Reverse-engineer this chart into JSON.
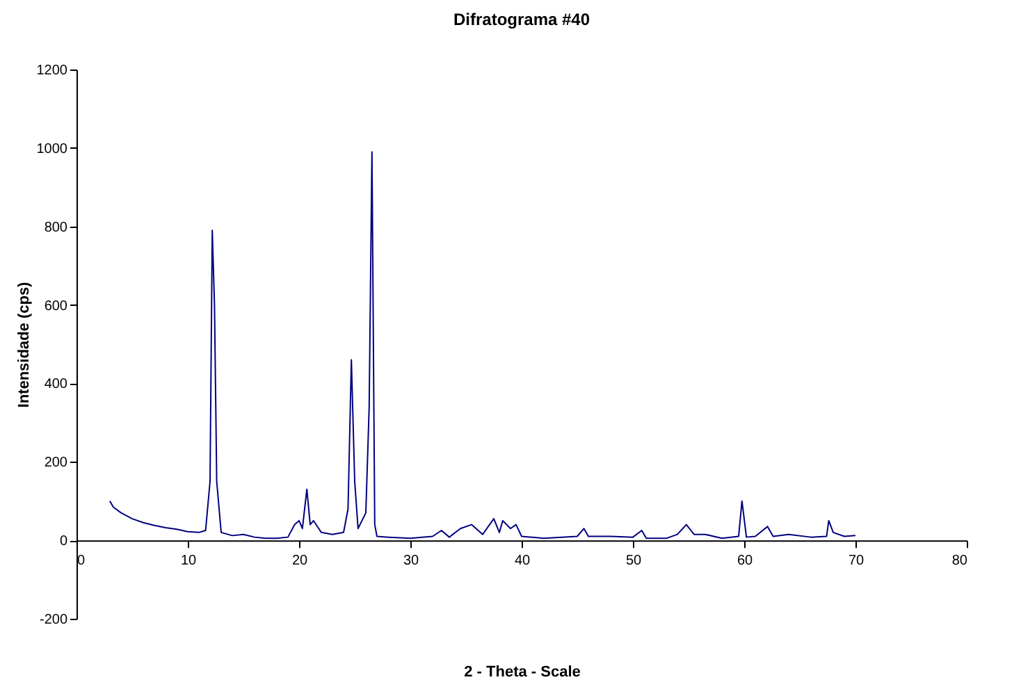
{
  "chart_data": {
    "type": "line",
    "title": "Difratograma #40",
    "xlabel": "2 - Theta - Scale",
    "ylabel": "Intensidade (cps)",
    "xlim": [
      0,
      80
    ],
    "xticks": [
      0,
      10,
      20,
      30,
      40,
      50,
      60,
      70,
      80
    ],
    "ylim": [
      -200,
      1200
    ],
    "yticks": [
      -200,
      0,
      200,
      400,
      600,
      800,
      1000,
      1200
    ],
    "grid": false,
    "marker": "none",
    "line_style": "solid",
    "series": [
      {
        "color": "#000080",
        "x": [
          3,
          3.3,
          4,
          5,
          6,
          7,
          8,
          9,
          10,
          11,
          11.6,
          12,
          12.2,
          12.4,
          12.6,
          13,
          14,
          15,
          16,
          17,
          18,
          19,
          19.6,
          20,
          20.3,
          20.7,
          21,
          21.3,
          22,
          23,
          24,
          24.4,
          24.7,
          25,
          25.3,
          26,
          26.3,
          26.55,
          26.8,
          27,
          28,
          30,
          32,
          32.8,
          33.5,
          34.5,
          35.5,
          36.5,
          37.5,
          38,
          38.3,
          39,
          39.5,
          40,
          42,
          45,
          45.6,
          46,
          48,
          50,
          50.8,
          51.2,
          53,
          54,
          54.8,
          55.5,
          56.5,
          58,
          59.5,
          59.8,
          60.2,
          61,
          62.1,
          62.6,
          64,
          66,
          67.4,
          67.6,
          68,
          69,
          70
        ],
        "values": [
          100,
          85,
          70,
          55,
          45,
          38,
          32,
          28,
          22,
          20,
          25,
          150,
          790,
          600,
          150,
          20,
          12,
          15,
          8,
          5,
          5,
          8,
          40,
          50,
          30,
          130,
          40,
          50,
          20,
          15,
          20,
          80,
          460,
          150,
          30,
          70,
          340,
          990,
          40,
          10,
          8,
          5,
          10,
          25,
          8,
          30,
          40,
          15,
          55,
          20,
          50,
          30,
          40,
          10,
          5,
          10,
          30,
          10,
          10,
          8,
          25,
          5,
          5,
          15,
          40,
          15,
          15,
          5,
          10,
          100,
          8,
          10,
          35,
          10,
          15,
          8,
          10,
          50,
          20,
          10,
          12
        ]
      }
    ]
  }
}
